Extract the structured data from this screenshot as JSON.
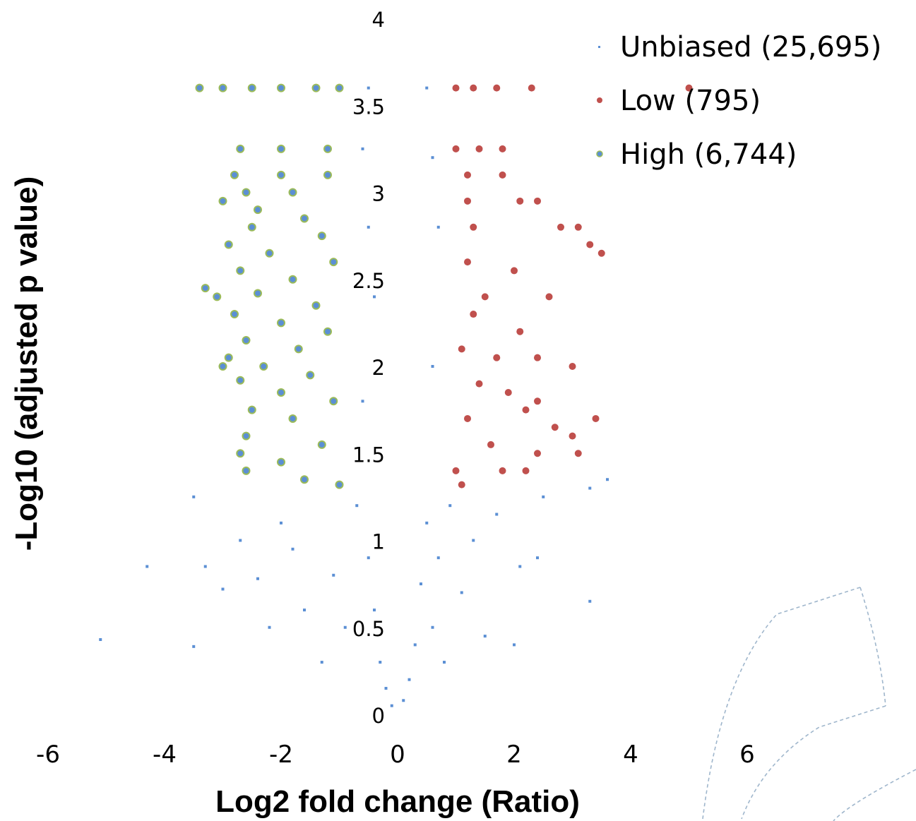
{
  "chart_data": {
    "type": "scatter",
    "title": "",
    "xlabel": "Log2 fold change (Ratio)",
    "ylabel": "-Log10 (adjusted p value)",
    "xlim": [
      -6,
      6
    ],
    "ylim": [
      0,
      4
    ],
    "x_ticks": [
      "-6",
      "-4",
      "-2",
      "0",
      "2",
      "4",
      "6"
    ],
    "y_ticks": [
      "0",
      "0.5",
      "1",
      "1.5",
      "2",
      "2.5",
      "3",
      "3.5",
      "4"
    ],
    "grid": false,
    "legend_position": "top-right",
    "series": [
      {
        "name": "Unbiased (25,695)",
        "color": "#5b8fd4",
        "marker": "small-square",
        "points": [
          [
            -5.1,
            0.43
          ],
          [
            -4.3,
            0.85
          ],
          [
            -3.5,
            0.39
          ],
          [
            -3.5,
            1.25
          ],
          [
            -3.3,
            0.85
          ],
          [
            -3.0,
            0.72
          ],
          [
            -2.7,
            1.0
          ],
          [
            -2.4,
            0.78
          ],
          [
            -2.2,
            0.5
          ],
          [
            -2.0,
            1.1
          ],
          [
            -1.8,
            0.95
          ],
          [
            -1.6,
            0.6
          ],
          [
            -1.3,
            0.3
          ],
          [
            -1.1,
            0.8
          ],
          [
            -0.9,
            0.5
          ],
          [
            -0.7,
            1.2
          ],
          [
            -0.5,
            0.9
          ],
          [
            -0.4,
            0.6
          ],
          [
            -0.3,
            0.3
          ],
          [
            -0.2,
            0.15
          ],
          [
            -0.1,
            0.05
          ],
          [
            0.1,
            0.08
          ],
          [
            0.2,
            0.2
          ],
          [
            0.3,
            0.4
          ],
          [
            0.4,
            0.75
          ],
          [
            0.5,
            1.1
          ],
          [
            0.6,
            0.5
          ],
          [
            0.7,
            0.9
          ],
          [
            0.8,
            0.3
          ],
          [
            0.9,
            1.2
          ],
          [
            1.1,
            0.7
          ],
          [
            1.3,
            1.0
          ],
          [
            1.5,
            0.45
          ],
          [
            1.7,
            1.15
          ],
          [
            2.0,
            0.4
          ],
          [
            2.1,
            0.85
          ],
          [
            2.4,
            0.9
          ],
          [
            2.5,
            1.25
          ],
          [
            3.3,
            0.65
          ],
          [
            3.3,
            1.3
          ],
          [
            3.6,
            1.35
          ],
          [
            -0.5,
            3.6
          ],
          [
            -0.6,
            3.25
          ],
          [
            -0.5,
            2.8
          ],
          [
            -0.4,
            2.4
          ],
          [
            0.5,
            3.6
          ],
          [
            0.6,
            3.2
          ],
          [
            0.7,
            2.8
          ],
          [
            0.6,
            2.0
          ],
          [
            -0.6,
            1.8
          ]
        ]
      },
      {
        "name": "Low (795)",
        "color": "#c0504d",
        "marker": "circle",
        "points": [
          [
            1.0,
            3.6
          ],
          [
            1.3,
            3.6
          ],
          [
            1.7,
            3.6
          ],
          [
            2.3,
            3.6
          ],
          [
            1.0,
            3.25
          ],
          [
            1.4,
            3.25
          ],
          [
            1.8,
            3.25
          ],
          [
            1.2,
            3.1
          ],
          [
            1.8,
            3.1
          ],
          [
            1.2,
            2.95
          ],
          [
            2.1,
            2.95
          ],
          [
            2.4,
            2.95
          ],
          [
            1.3,
            2.8
          ],
          [
            2.8,
            2.8
          ],
          [
            3.1,
            2.8
          ],
          [
            3.3,
            2.7
          ],
          [
            3.5,
            2.65
          ],
          [
            1.2,
            2.6
          ],
          [
            2.0,
            2.55
          ],
          [
            1.5,
            2.4
          ],
          [
            2.6,
            2.4
          ],
          [
            1.3,
            2.3
          ],
          [
            2.1,
            2.2
          ],
          [
            1.1,
            2.1
          ],
          [
            1.7,
            2.05
          ],
          [
            2.4,
            2.05
          ],
          [
            3.0,
            2.0
          ],
          [
            1.4,
            1.9
          ],
          [
            1.9,
            1.85
          ],
          [
            2.4,
            1.8
          ],
          [
            2.2,
            1.75
          ],
          [
            3.4,
            1.7
          ],
          [
            1.2,
            1.7
          ],
          [
            2.7,
            1.65
          ],
          [
            3.0,
            1.6
          ],
          [
            1.6,
            1.55
          ],
          [
            2.4,
            1.5
          ],
          [
            3.1,
            1.5
          ],
          [
            1.0,
            1.4
          ],
          [
            1.8,
            1.4
          ],
          [
            2.2,
            1.4
          ],
          [
            1.1,
            1.32
          ],
          [
            5.0,
            3.6
          ]
        ]
      },
      {
        "name": "High (6,744)",
        "color": "#5b8fd4",
        "edge_color": "#9bbb59",
        "marker": "circle",
        "points": [
          [
            -3.4,
            3.6
          ],
          [
            -3.0,
            3.6
          ],
          [
            -2.5,
            3.6
          ],
          [
            -2.0,
            3.6
          ],
          [
            -1.4,
            3.6
          ],
          [
            -1.0,
            3.6
          ],
          [
            -2.7,
            3.25
          ],
          [
            -2.0,
            3.25
          ],
          [
            -1.2,
            3.25
          ],
          [
            -2.8,
            3.1
          ],
          [
            -2.0,
            3.1
          ],
          [
            -1.2,
            3.1
          ],
          [
            -2.6,
            3.0
          ],
          [
            -1.8,
            3.0
          ],
          [
            -3.0,
            2.95
          ],
          [
            -2.4,
            2.9
          ],
          [
            -1.6,
            2.85
          ],
          [
            -2.5,
            2.8
          ],
          [
            -1.3,
            2.75
          ],
          [
            -2.9,
            2.7
          ],
          [
            -2.2,
            2.65
          ],
          [
            -1.1,
            2.6
          ],
          [
            -2.7,
            2.55
          ],
          [
            -1.8,
            2.5
          ],
          [
            -3.3,
            2.45
          ],
          [
            -2.4,
            2.42
          ],
          [
            -3.1,
            2.4
          ],
          [
            -1.4,
            2.35
          ],
          [
            -2.8,
            2.3
          ],
          [
            -2.0,
            2.25
          ],
          [
            -1.2,
            2.2
          ],
          [
            -2.6,
            2.15
          ],
          [
            -1.7,
            2.1
          ],
          [
            -2.9,
            2.05
          ],
          [
            -3.0,
            2.0
          ],
          [
            -2.3,
            2.0
          ],
          [
            -1.5,
            1.95
          ],
          [
            -2.7,
            1.92
          ],
          [
            -2.0,
            1.85
          ],
          [
            -1.1,
            1.8
          ],
          [
            -2.5,
            1.75
          ],
          [
            -1.8,
            1.7
          ],
          [
            -2.6,
            1.6
          ],
          [
            -1.3,
            1.55
          ],
          [
            -2.7,
            1.5
          ],
          [
            -2.0,
            1.45
          ],
          [
            -2.6,
            1.4
          ],
          [
            -1.6,
            1.35
          ],
          [
            -1.0,
            1.32
          ]
        ]
      }
    ]
  },
  "decoration": {
    "arc_color": "#9fb6cc"
  }
}
